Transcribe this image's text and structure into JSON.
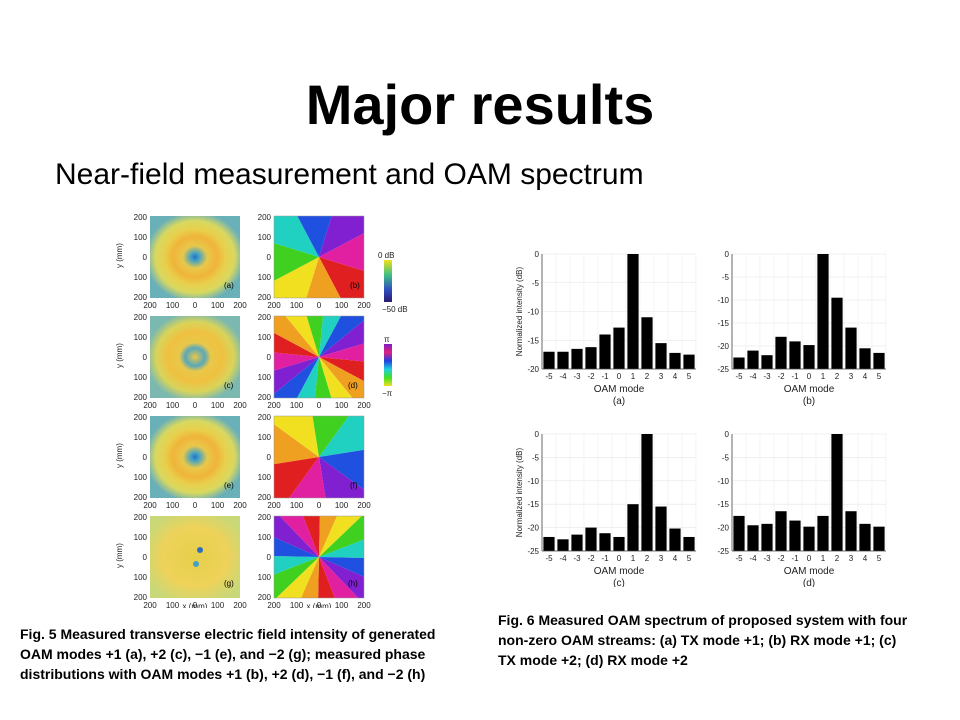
{
  "slide": {
    "title": "Major results",
    "subtitle": "Near-field measurement and OAM spectrum"
  },
  "fig5": {
    "caption": "Fig. 5 Measured transverse electric field intensity of generated OAM modes +1 (a), +2 (c), −1 (e), and −2 (g); measured phase distributions with OAM modes +1 (b), +2 (d), −1 (f), and −2 (h)",
    "panel_labels": [
      "(a)",
      "(b)",
      "(c)",
      "(d)",
      "(e)",
      "(f)",
      "(g)",
      "(h)"
    ],
    "ylabel": "y (mm)",
    "xlabel": "x (mm)",
    "y_ticks": [
      "200",
      "100",
      "0",
      "100",
      "200"
    ],
    "x_ticks": [
      "200",
      "100",
      "0",
      "100",
      "200"
    ],
    "intensity_colorbar": {
      "top": "0 dB",
      "bottom": "−50 dB"
    },
    "phase_colorbar": {
      "top": "π",
      "bottom": "−π"
    }
  },
  "fig6": {
    "caption": "Fig. 6 Measured OAM spectrum of proposed system with four non-zero OAM streams: (a) TX mode +1; (b) RX mode +1; (c) TX mode +2; (d) RX mode +2"
  },
  "chart_data": [
    {
      "type": "bar",
      "panel": "(a)",
      "xlabel": "OAM mode",
      "ylabel": "Normalized intensity (dB)",
      "categories": [
        "-5",
        "-4",
        "-3",
        "-2",
        "-1",
        "0",
        "1",
        "2",
        "3",
        "4",
        "5"
      ],
      "values": [
        -17,
        -17,
        -16.5,
        -16.2,
        -14,
        -12.8,
        0,
        -11,
        -15.5,
        -17.2,
        -17.5
      ],
      "ylim": [
        -20,
        0
      ],
      "yticks": [
        "0",
        "-5",
        "-10",
        "-15",
        "-20"
      ]
    },
    {
      "type": "bar",
      "panel": "(b)",
      "xlabel": "OAM mode",
      "ylabel": "",
      "categories": [
        "-5",
        "-4",
        "-3",
        "-2",
        "-1",
        "0",
        "1",
        "2",
        "3",
        "4",
        "5"
      ],
      "values": [
        -22.5,
        -21,
        -22,
        -18,
        -19,
        -19.8,
        0,
        -9.5,
        -16,
        -20.5,
        -21.5
      ],
      "ylim": [
        -25,
        0
      ],
      "yticks": [
        "0",
        "-5",
        "-10",
        "-15",
        "-20",
        "-25"
      ]
    },
    {
      "type": "bar",
      "panel": "(c)",
      "xlabel": "OAM mode",
      "ylabel": "Normalized intensity (dB)",
      "categories": [
        "-5",
        "-4",
        "-3",
        "-2",
        "-1",
        "0",
        "1",
        "2",
        "3",
        "4",
        "5"
      ],
      "values": [
        -22,
        -22.5,
        -21.5,
        -20,
        -21.2,
        -22,
        -15,
        0,
        -15.5,
        -20.2,
        -22
      ],
      "ylim": [
        -25,
        0
      ],
      "yticks": [
        "0",
        "-5",
        "-10",
        "-15",
        "-20",
        "-25"
      ]
    },
    {
      "type": "bar",
      "panel": "(d)",
      "xlabel": "OAM mode",
      "ylabel": "",
      "categories": [
        "-5",
        "-4",
        "-3",
        "-2",
        "-1",
        "0",
        "1",
        "2",
        "3",
        "4",
        "5"
      ],
      "values": [
        -17.5,
        -19.5,
        -19.2,
        -16.5,
        -18.5,
        -19.8,
        -17.5,
        0,
        -16.5,
        -19.2,
        -19.8
      ],
      "ylim": [
        -25,
        0
      ],
      "yticks": [
        "0",
        "-5",
        "-10",
        "-15",
        "-20",
        "-25"
      ]
    }
  ]
}
